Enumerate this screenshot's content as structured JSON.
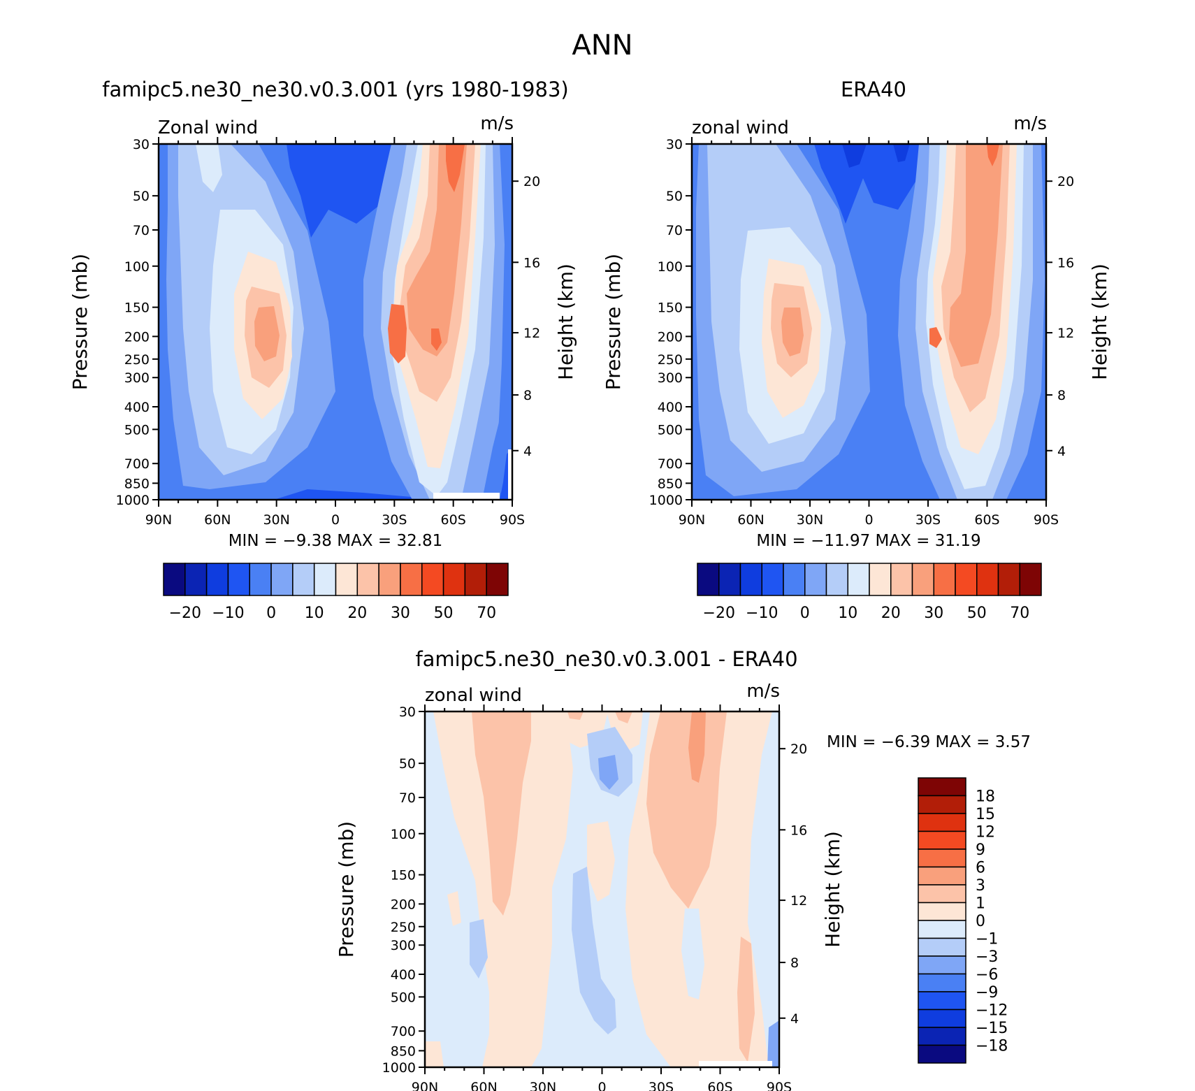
{
  "figure": {
    "title": "ANN"
  },
  "panels": [
    {
      "id": "model",
      "title": "famipc5.ne30_ne30.v0.3.001 (yrs 1980-1983)",
      "left_label": "Zonal wind",
      "right_label": "m/s",
      "ylabel": "Pressure (mb)",
      "ylabel_right": "Height (km)",
      "stats": {
        "min_label": "MIN =",
        "min": "-9.38",
        "max_label": "MAX =",
        "max": "32.81"
      },
      "colorbar": "abs"
    },
    {
      "id": "obs",
      "title": "ERA40",
      "left_label": "zonal wind",
      "right_label": "m/s",
      "ylabel": "Pressure (mb)",
      "ylabel_right": "Height (km)",
      "stats": {
        "min_label": "MIN =",
        "min": "-11.97",
        "max_label": "MAX =",
        "max": "31.19"
      },
      "colorbar": "abs"
    },
    {
      "id": "diff",
      "title": "famipc5.ne30_ne30.v0.3.001 - ERA40",
      "left_label": "zonal wind",
      "right_label": "m/s",
      "ylabel": "Pressure (mb)",
      "ylabel_right": "Height (km)",
      "stats": {
        "min_label": "MIN =",
        "min": "-6.39",
        "max_label": "MAX =",
        "max": "3.57"
      },
      "colorbar": "diff"
    }
  ],
  "axes": {
    "x_ticks": [
      "90N",
      "60N",
      "30N",
      "0",
      "30S",
      "60S",
      "90S"
    ],
    "y_ticks": [
      30,
      50,
      70,
      100,
      150,
      200,
      250,
      300,
      400,
      500,
      700,
      850,
      1000
    ],
    "height_ticks": [
      4,
      8,
      12,
      16,
      20
    ]
  },
  "colorbars": {
    "abs": {
      "labels": [
        "-20",
        "-10",
        "0",
        "10",
        "20",
        "30",
        "50",
        "70"
      ],
      "colors": [
        "#0a0a80",
        "#0b24b4",
        "#0f3ddf",
        "#1f55f2",
        "#4a80f4",
        "#7fa6f6",
        "#b4cdf8",
        "#dcebfb",
        "#fde6d6",
        "#fcc3a9",
        "#f9a07c",
        "#f76f45",
        "#f44a22",
        "#df3210",
        "#b21e08",
        "#7e0505"
      ]
    },
    "diff": {
      "labels": [
        "18",
        "15",
        "12",
        "9",
        "6",
        "3",
        "1",
        "0",
        "-1",
        "-3",
        "-6",
        "-9",
        "-12",
        "-15",
        "-18"
      ],
      "colors": [
        "#7e0505",
        "#b21e08",
        "#df3210",
        "#f44a22",
        "#f76f45",
        "#f9a07c",
        "#fcc3a9",
        "#fde6d6",
        "#dcebfb",
        "#b4cdf8",
        "#7fa6f6",
        "#4a80f4",
        "#1f55f2",
        "#0f3ddf",
        "#0b24b4",
        "#0a0a80"
      ]
    }
  },
  "chart_data": [
    {
      "type": "heatmap",
      "title": "famipc5.ne30_ne30.v0.3.001 (yrs 1980-1983)",
      "variable": "Zonal wind",
      "units": "m/s",
      "xlabel": "",
      "ylabel": "Pressure (mb)",
      "ylabel_right": "Height (km)",
      "x_ticks": [
        "90N",
        "60N",
        "30N",
        "0",
        "30S",
        "60S",
        "90S"
      ],
      "ylim": [
        1000,
        30
      ],
      "y_scale": "log",
      "min": -9.38,
      "max": 32.81,
      "contour_levels": [
        -20,
        -15,
        -10,
        -5,
        0,
        5,
        10,
        15,
        20,
        25,
        30,
        40,
        50,
        60,
        70
      ],
      "grid": false
    },
    {
      "type": "heatmap",
      "title": "ERA40",
      "variable": "zonal wind",
      "units": "m/s",
      "xlabel": "",
      "ylabel": "Pressure (mb)",
      "ylabel_right": "Height (km)",
      "x_ticks": [
        "90N",
        "60N",
        "30N",
        "0",
        "30S",
        "60S",
        "90S"
      ],
      "ylim": [
        1000,
        30
      ],
      "y_scale": "log",
      "min": -11.97,
      "max": 31.19,
      "contour_levels": [
        -20,
        -15,
        -10,
        -5,
        0,
        5,
        10,
        15,
        20,
        25,
        30,
        40,
        50,
        60,
        70
      ],
      "grid": false
    },
    {
      "type": "heatmap",
      "title": "famipc5.ne30_ne30.v0.3.001 - ERA40",
      "variable": "zonal wind",
      "units": "m/s",
      "xlabel": "",
      "ylabel": "Pressure (mb)",
      "ylabel_right": "Height (km)",
      "x_ticks": [
        "90N",
        "60N",
        "30N",
        "0",
        "30S",
        "60S",
        "90S"
      ],
      "ylim": [
        1000,
        30
      ],
      "y_scale": "log",
      "min": -6.39,
      "max": 3.57,
      "contour_levels": [
        -18,
        -15,
        -12,
        -9,
        -6,
        -3,
        -1,
        0,
        1,
        3,
        6,
        9,
        12,
        15,
        18
      ],
      "grid": false
    }
  ]
}
